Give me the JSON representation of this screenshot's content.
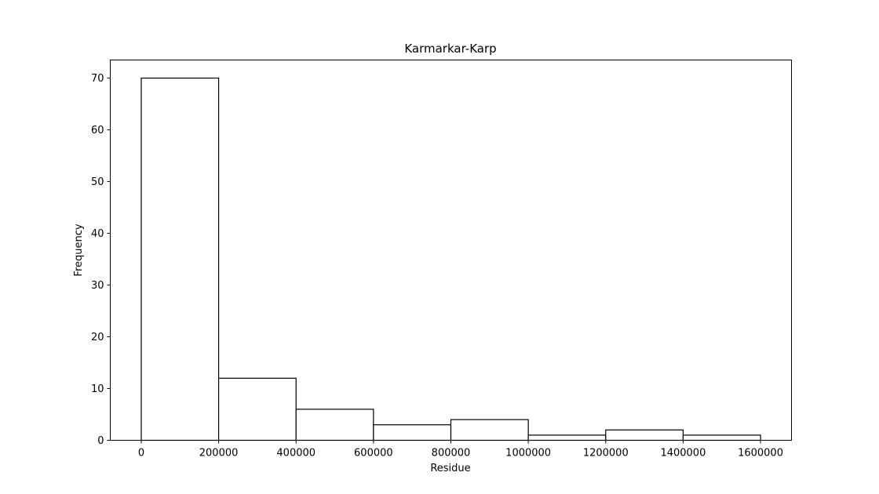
{
  "chart_data": {
    "type": "bar",
    "title": "Karmarkar-Karp",
    "xlabel": "Residue",
    "ylabel": "Frequency",
    "bins": [
      {
        "start": 0,
        "end": 200000,
        "value": 70
      },
      {
        "start": 200000,
        "end": 400000,
        "value": 12
      },
      {
        "start": 400000,
        "end": 600000,
        "value": 6
      },
      {
        "start": 600000,
        "end": 800000,
        "value": 3
      },
      {
        "start": 800000,
        "end": 1000000,
        "value": 4
      },
      {
        "start": 1000000,
        "end": 1200000,
        "value": 1
      },
      {
        "start": 1200000,
        "end": 1400000,
        "value": 2
      },
      {
        "start": 1400000,
        "end": 1600000,
        "value": 1
      }
    ],
    "xlim": [
      -80000,
      1680000
    ],
    "ylim": [
      0,
      73.5
    ],
    "xticks": [
      0,
      200000,
      400000,
      600000,
      800000,
      1000000,
      1200000,
      1400000,
      1600000
    ],
    "xtick_labels": [
      "0",
      "200000",
      "400000",
      "600000",
      "800000",
      "1000000",
      "1200000",
      "1400000",
      "1600000"
    ],
    "yticks": [
      0,
      10,
      20,
      30,
      40,
      50,
      60,
      70
    ],
    "ytick_labels": [
      "0",
      "10",
      "20",
      "30",
      "40",
      "50",
      "60",
      "70"
    ],
    "grid": false,
    "colors": {
      "bar_fill": "#ffffff",
      "bar_edge": "#000000"
    }
  }
}
